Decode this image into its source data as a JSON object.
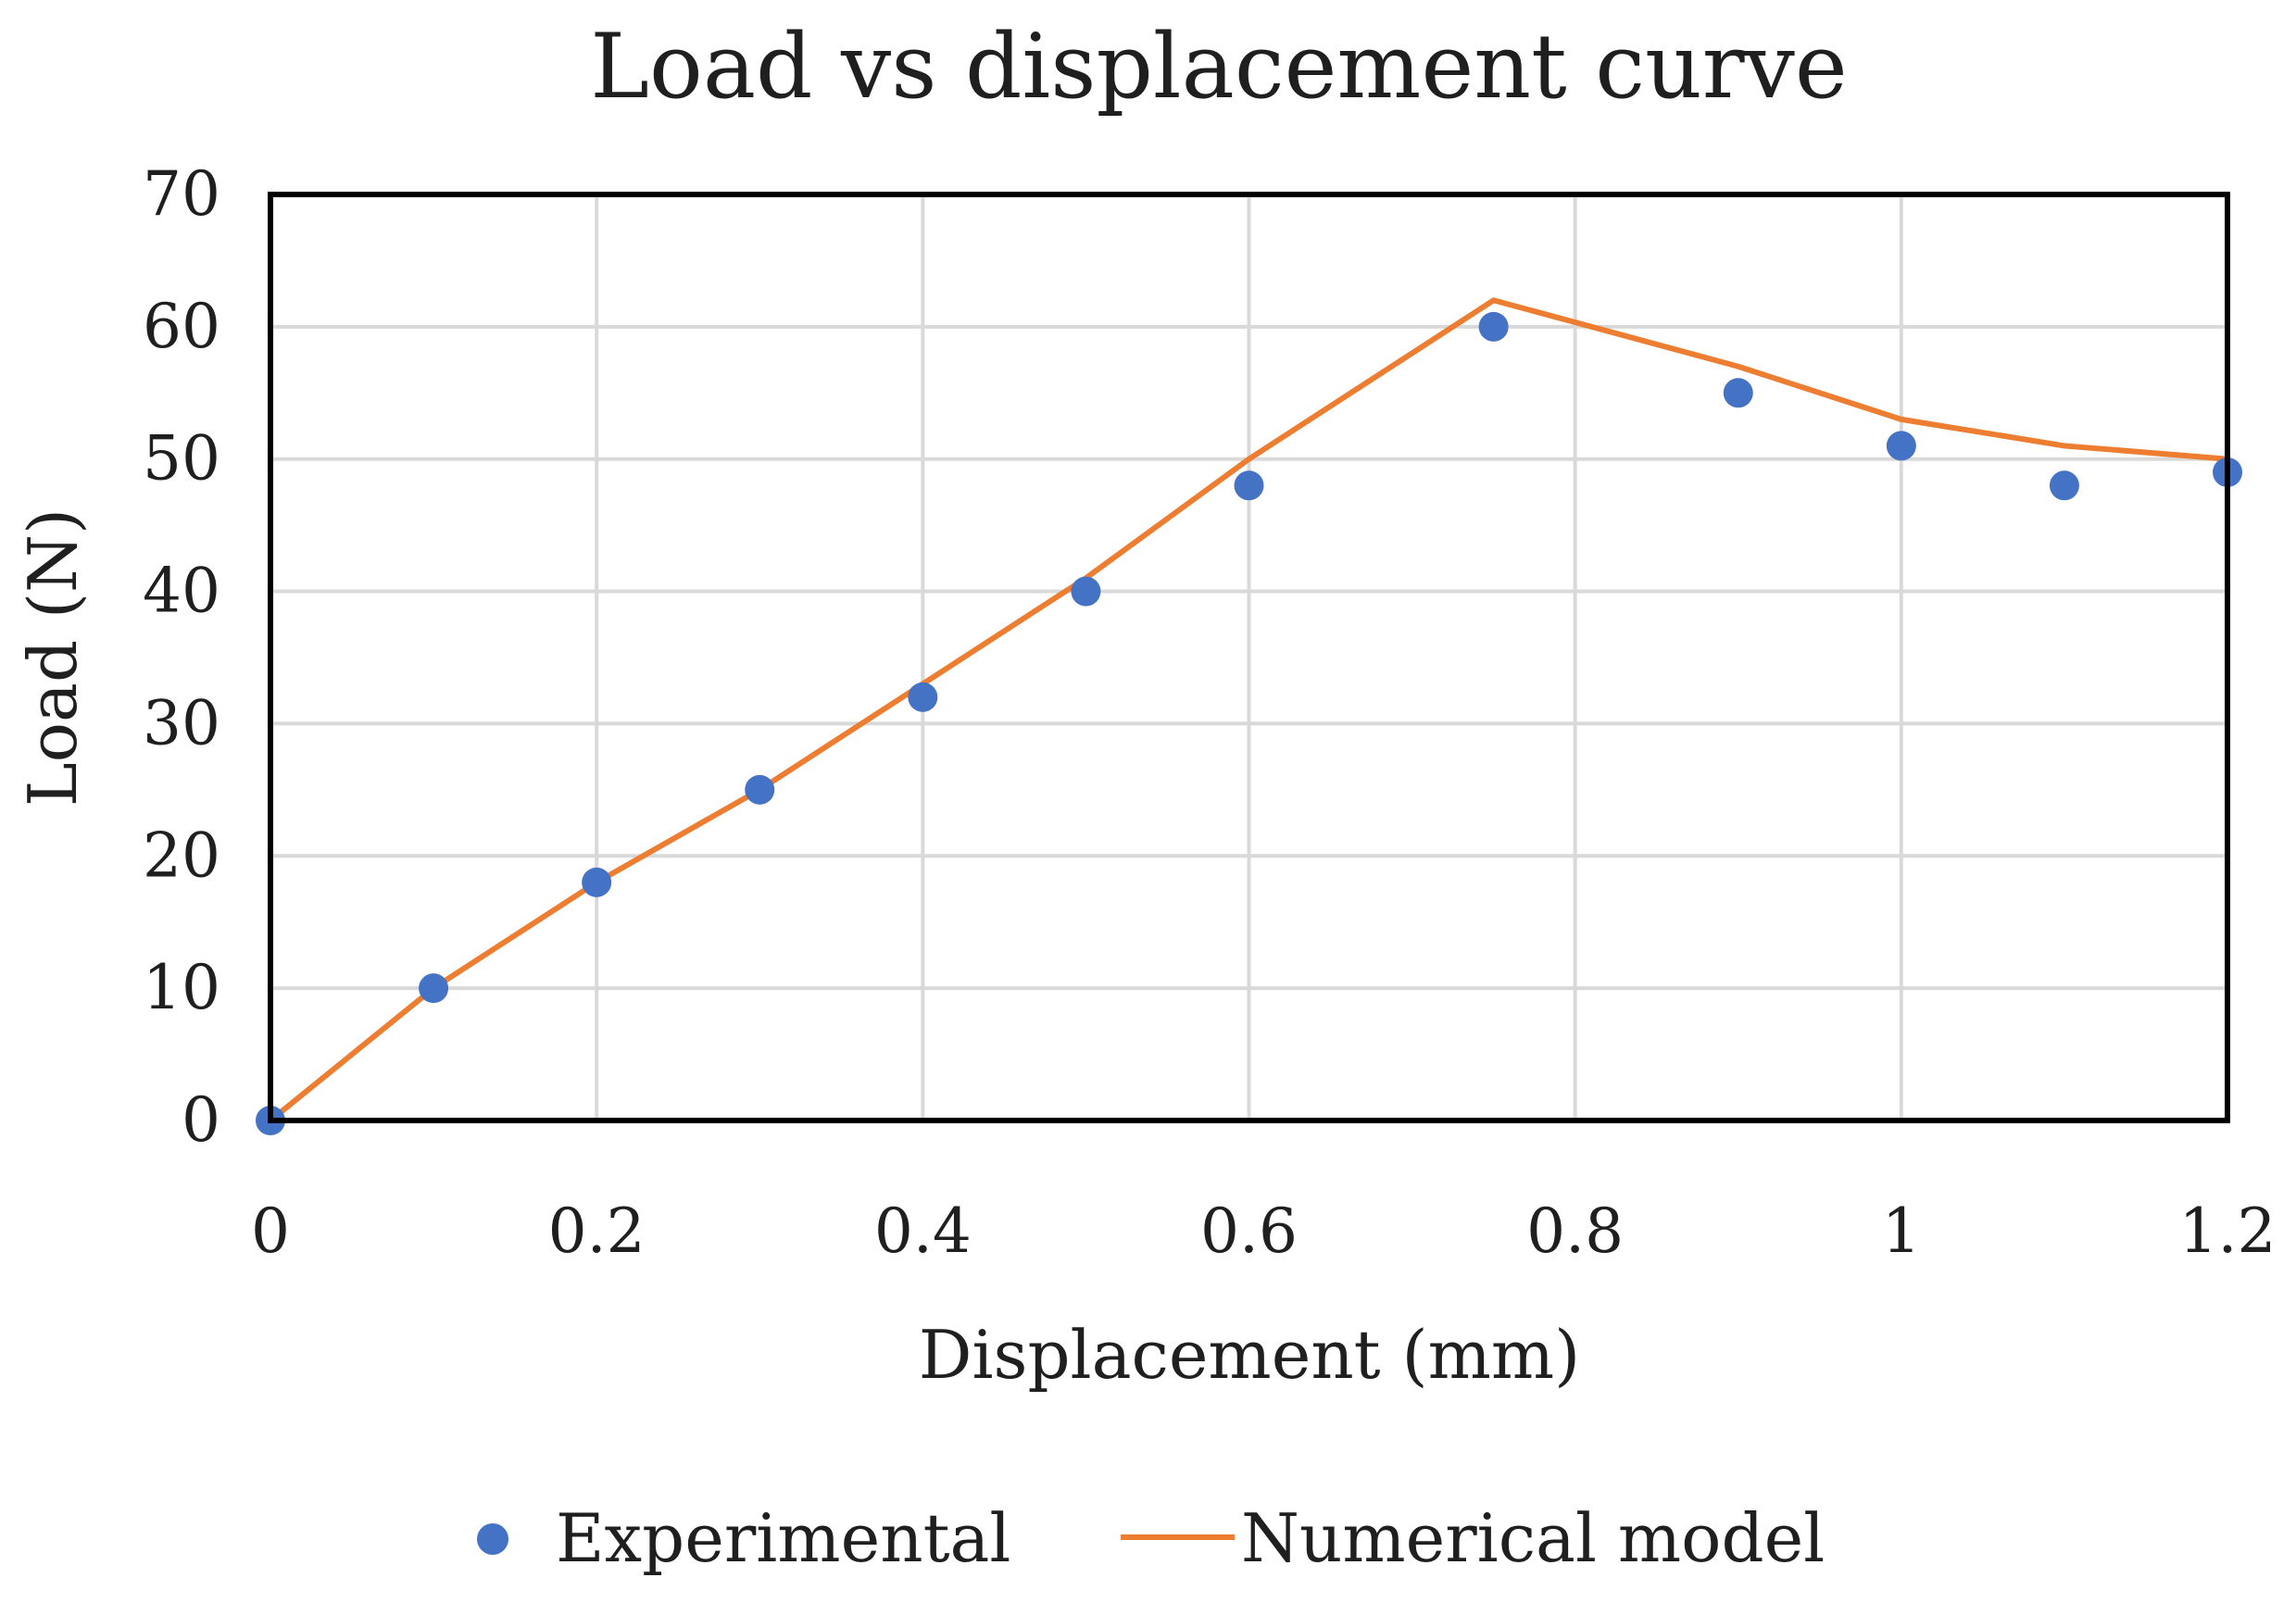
{
  "chart_data": {
    "type": "scatter",
    "title": "Load vs displacement curve",
    "xlabel": "Displacement (mm)",
    "ylabel": "Load (N)",
    "xlim": [
      0,
      1.2
    ],
    "ylim": [
      0,
      70
    ],
    "x_ticks": [
      0,
      0.2,
      0.4,
      0.6,
      0.8,
      1,
      1.2
    ],
    "x_tick_labels": [
      "0",
      "0.2",
      "0.4",
      "0.6",
      "0.8",
      "1",
      "1.2"
    ],
    "y_ticks": [
      0,
      10,
      20,
      30,
      40,
      50,
      60,
      70
    ],
    "y_tick_labels": [
      "0",
      "10",
      "20",
      "30",
      "40",
      "50",
      "60",
      "70"
    ],
    "grid": true,
    "legend_position": "bottom",
    "series": [
      {
        "name": "Experimental",
        "kind": "scatter",
        "color": "#4472C4",
        "x": [
          0,
          0.1,
          0.2,
          0.3,
          0.4,
          0.5,
          0.6,
          0.75,
          0.9,
          1.0,
          1.1,
          1.2
        ],
        "y": [
          0,
          10,
          18,
          25,
          32,
          40,
          48,
          60,
          55,
          51,
          48,
          49
        ]
      },
      {
        "name": "Numerical model",
        "kind": "line",
        "color": "#ED7D31",
        "x": [
          0,
          0.1,
          0.2,
          0.3,
          0.4,
          0.5,
          0.6,
          0.75,
          0.9,
          1.0,
          1.1,
          1.2
        ],
        "y": [
          0,
          10,
          18,
          25,
          33,
          41,
          50,
          62,
          57,
          53,
          51,
          50
        ]
      }
    ]
  }
}
